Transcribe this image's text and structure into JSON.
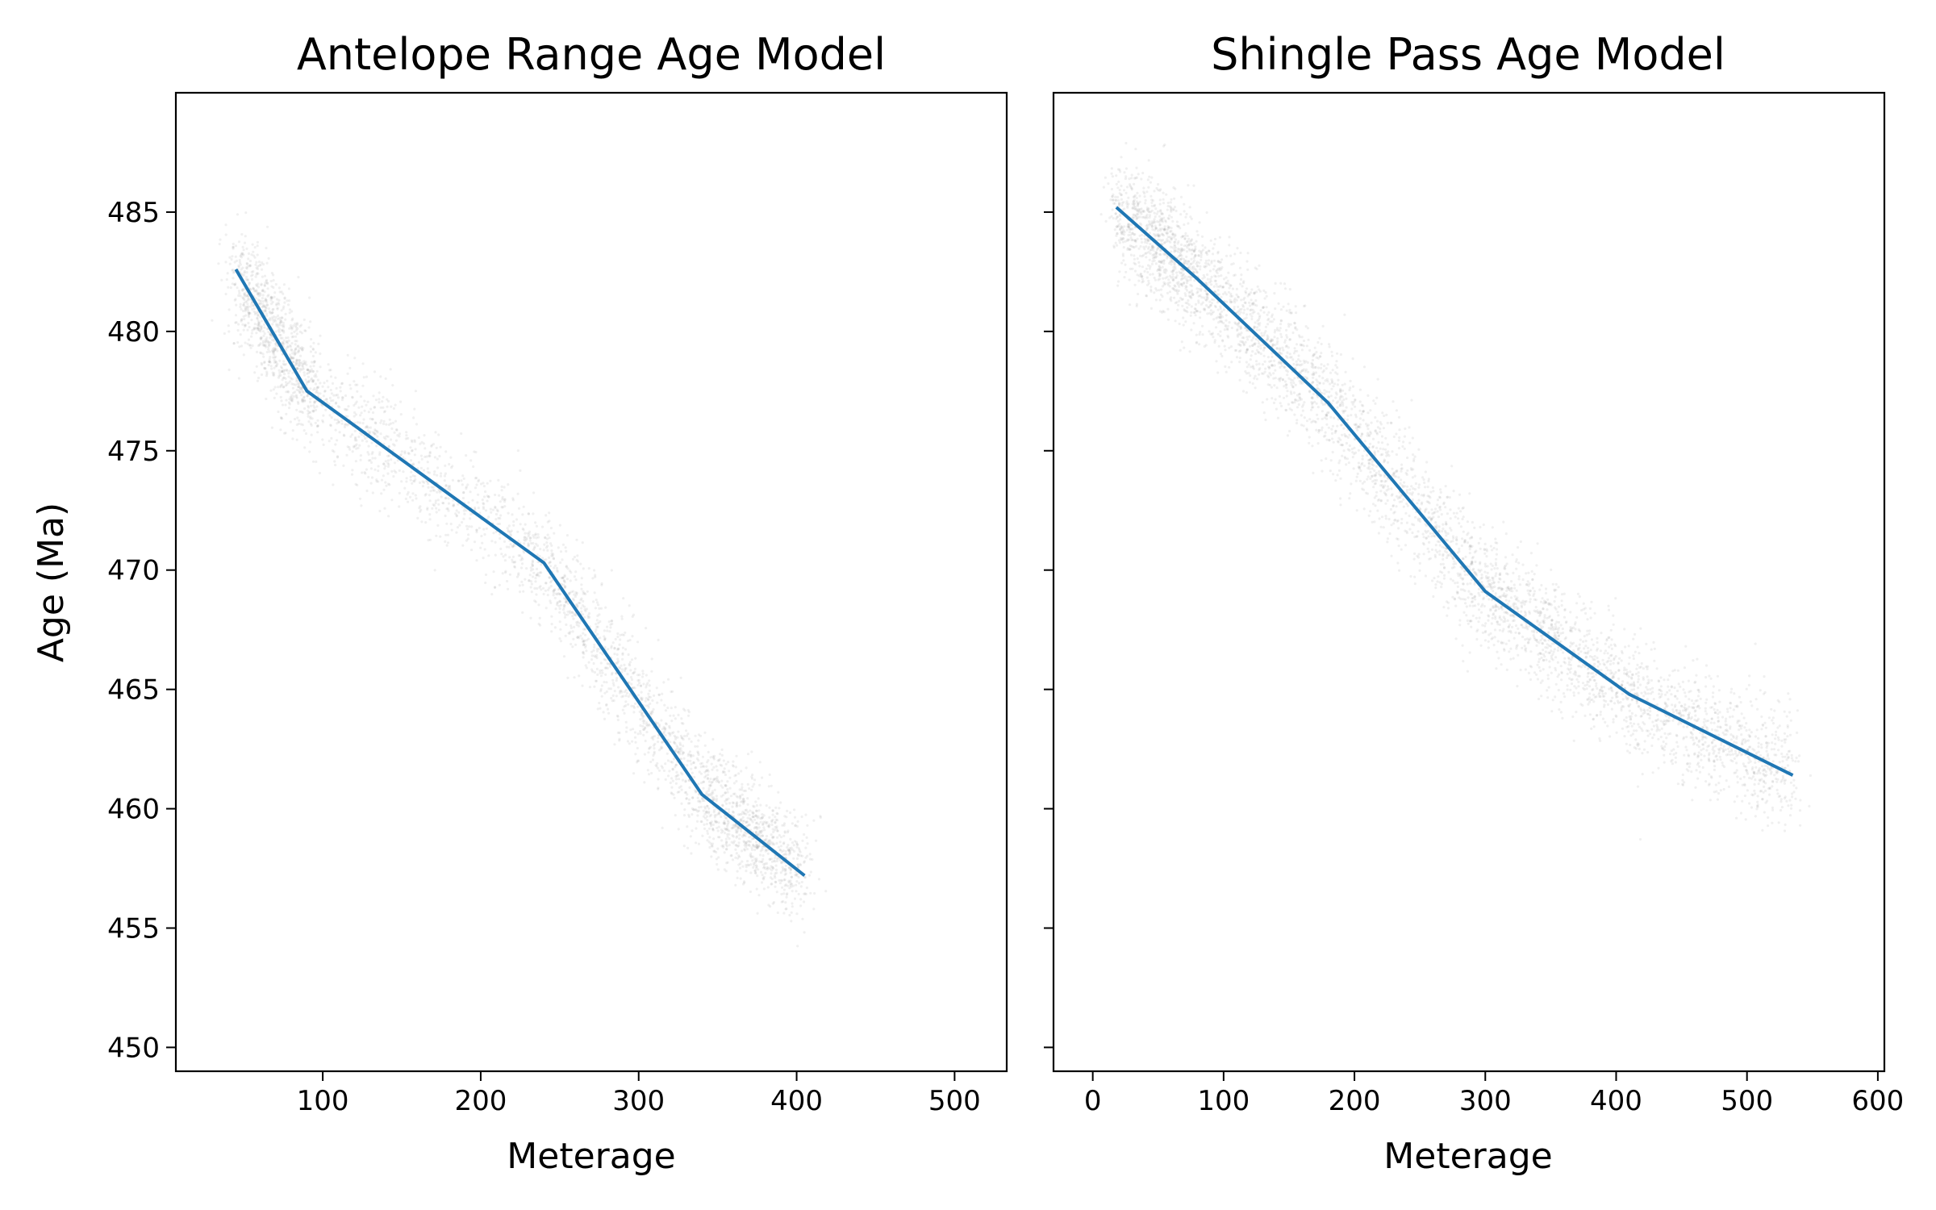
{
  "chart_data": [
    {
      "type": "line",
      "title": "Antelope Range Age Model",
      "xlabel": "Meterage",
      "ylabel": "Age (Ma)",
      "xlim": [
        7,
        533
      ],
      "ylim": [
        449,
        490
      ],
      "xticks": [
        100,
        200,
        300,
        400,
        500
      ],
      "yticks": [
        450,
        455,
        460,
        465,
        470,
        475,
        480,
        485
      ],
      "grid": false,
      "series": [
        {
          "color": "#1f77b4",
          "x": [
            45,
            90,
            240,
            340,
            405
          ],
          "y": [
            482.6,
            477.5,
            470.3,
            460.6,
            457.2
          ]
        }
      ],
      "uncertainty_band": {
        "color": "#808080",
        "spread": 1.1
      }
    },
    {
      "type": "line",
      "title": "Shingle Pass Age Model",
      "xlabel": "Meterage",
      "ylabel": "",
      "xlim": [
        -30,
        605
      ],
      "ylim": [
        449,
        490
      ],
      "xticks": [
        0,
        100,
        200,
        300,
        400,
        500,
        600
      ],
      "yticks": [
        450,
        455,
        460,
        465,
        470,
        475,
        480,
        485
      ],
      "grid": false,
      "series": [
        {
          "color": "#1f77b4",
          "x": [
            18,
            80,
            180,
            300,
            410,
            535
          ],
          "y": [
            485.2,
            482.2,
            477.0,
            469.1,
            464.8,
            461.4
          ]
        }
      ],
      "uncertainty_band": {
        "color": "#808080",
        "spread": 1.2
      }
    }
  ]
}
